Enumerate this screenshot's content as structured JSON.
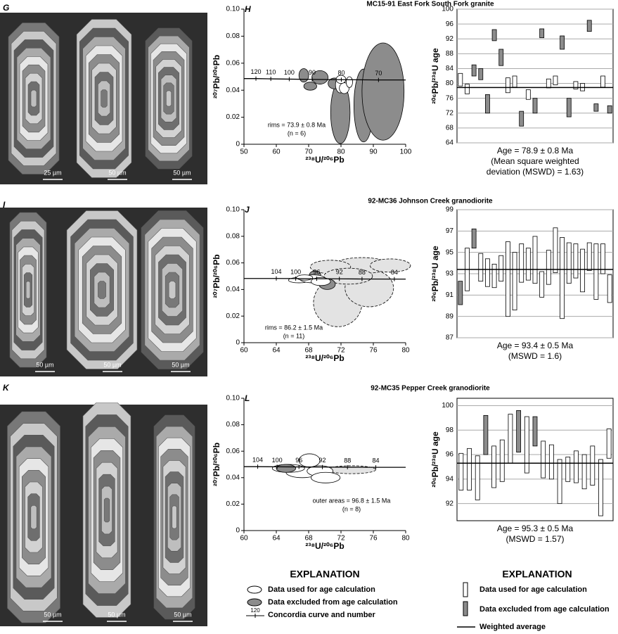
{
  "figure": {
    "rows": [
      {
        "panel_letter": "G",
        "scale_bars": [
          "25 µm",
          "50 µm",
          "50 µm"
        ]
      },
      {
        "panel_letter": "I",
        "scale_bars": [
          "50 µm",
          "50 µm",
          "50 µm"
        ]
      },
      {
        "panel_letter": "K",
        "scale_bars": [
          "50 µm",
          "50 µm",
          "50 µm"
        ]
      }
    ]
  },
  "chart_data": [
    {
      "type": "concordia",
      "panel_letter": "H",
      "title": "MC15-91 East Fork South Fork granite",
      "xlabel": "²³⁸U/²⁰⁶Pb",
      "ylabel": "²⁰⁷Pb/²⁰⁶Pb",
      "xlim": [
        50,
        100
      ],
      "xticks": [
        50,
        60,
        70,
        80,
        90,
        100
      ],
      "ylim": [
        0,
        0.1
      ],
      "yticks": [
        0,
        0.02,
        0.04,
        0.06,
        0.08,
        {
          "value": 0.1,
          "label": "0.10"
        }
      ],
      "concordia": {
        "labels": [
          120,
          110,
          100,
          90,
          80,
          70
        ],
        "x": [
          53.7,
          58.3,
          64.0,
          71.1,
          80.1,
          91.6
        ],
        "y": [
          0.0486,
          0.0484,
          0.0482,
          0.048,
          0.0478,
          0.0476
        ]
      },
      "series": [
        {
          "color": "#8c8c8c",
          "dashed": false,
          "x": [
            79.8,
            87,
            93,
            68.5,
            73.5,
            70.5,
            78
          ],
          "values": [
            0.0235,
            0.0287,
            0.039,
            0.051,
            0.0495,
            0.043,
            0.045
          ],
          "x_errors": [
            3,
            3,
            6.5,
            1.5,
            2.5,
            2,
            2
          ],
          "errors": [
            0.023,
            0.027,
            0.036,
            0.005,
            0.005,
            0.003,
            0.004
          ]
        },
        {
          "color": "#ffffff",
          "dashed": false,
          "x": [
            79.8,
            81,
            80,
            82.6
          ],
          "values": [
            0.044,
            0.0415,
            0.048,
            0.046
          ],
          "x_errors": [
            1.5,
            1.5,
            1.5,
            1
          ],
          "errors": [
            0.006,
            0.004,
            0.003,
            0.004
          ]
        }
      ],
      "annotation": [
        "rims = 73.9 ± 0.8 Ma",
        "(n = 6)"
      ]
    },
    {
      "type": "weighted_mean",
      "ylabel": "²⁰⁶Pb/²³⁸U age",
      "ylim": [
        64,
        100
      ],
      "yticks": [
        64,
        68,
        72,
        76,
        80,
        84,
        88,
        92,
        96,
        100
      ],
      "grid": true,
      "used_color": "#ffffff",
      "excluded_color": "#8c8c8c",
      "values": [
        81,
        78.5,
        83.5,
        82.5,
        74.5,
        93,
        87,
        79.5,
        80.5,
        70.5,
        77,
        74,
        93.5,
        80,
        80.8,
        91,
        73.5,
        79.5,
        79,
        95.5,
        73.5,
        80.5,
        73
      ],
      "errors": [
        1.7,
        1.3,
        1.5,
        1.5,
        2.5,
        1.5,
        2.2,
        2,
        1.5,
        2,
        1.3,
        2,
        1.2,
        1.2,
        1.2,
        1.8,
        2.5,
        1,
        1,
        1.5,
        1,
        1.5,
        1
      ],
      "excluded": [
        false,
        false,
        true,
        true,
        true,
        true,
        true,
        false,
        false,
        true,
        false,
        true,
        true,
        false,
        false,
        true,
        true,
        false,
        false,
        true,
        true,
        false,
        true
      ],
      "weighted_average": 78.9,
      "caption": [
        "Age = 78.9 ± 0.8 Ma",
        "(Mean square weighted",
        "deviation (MSWD) = 1.63)"
      ]
    },
    {
      "type": "concordia",
      "panel_letter": "J",
      "title": "92-MC36 Johnson Creek granodiorite",
      "xlabel": "²³⁸U/²⁰⁶Pb",
      "ylabel": "²⁰⁷Pb/²⁰⁶Pb",
      "xlim": [
        60,
        80
      ],
      "xticks": [
        60,
        64,
        68,
        72,
        76,
        80
      ],
      "ylim": [
        0,
        0.1
      ],
      "yticks": [
        0,
        0.02,
        0.04,
        0.06,
        0.08,
        {
          "value": 0.1,
          "label": "0.10"
        }
      ],
      "concordia": {
        "labels": [
          104,
          100,
          96,
          92,
          88,
          84
        ],
        "x": [
          64.0,
          66.4,
          69.0,
          71.8,
          74.6,
          78.6
        ],
        "y": [
          0.0483,
          0.0482,
          0.0481,
          0.048,
          0.0479,
          0.0478
        ]
      },
      "series": [
        {
          "color": "#e3e3e3",
          "dashed": true,
          "x": [
            71.6,
            75.5,
            74.6,
            78.1,
            70.7,
            72.9
          ],
          "values": [
            0.03,
            0.041,
            0.058,
            0.058,
            0.057,
            0.05
          ],
          "x_errors": [
            3,
            3,
            3.5,
            2.5,
            2.5,
            3
          ],
          "errors": [
            0.018,
            0.014,
            0.006,
            0.005,
            0.005,
            0.006
          ]
        },
        {
          "color": "#8c8c8c",
          "dashed": false,
          "x": [
            68.8,
            70.3
          ],
          "values": [
            0.051,
            0.044
          ],
          "x_errors": [
            0.7,
            1
          ],
          "errors": [
            0.003,
            0.004
          ]
        },
        {
          "color": "#ffffff",
          "dashed": false,
          "x": [
            66.8,
            68.5,
            69.5,
            67.5
          ],
          "values": [
            0.047,
            0.048,
            0.046,
            0.049
          ],
          "x_errors": [
            1.3,
            1.6,
            1.2,
            1
          ],
          "errors": [
            0.002,
            0.003,
            0.003,
            0.002
          ]
        }
      ],
      "annotation": [
        "rims = 86.2 ± 1.5 Ma",
        "(n = 11)"
      ]
    },
    {
      "type": "weighted_mean",
      "ylabel": "²⁰⁶Pb/²³⁸U age",
      "ylim": [
        87,
        99
      ],
      "yticks": [
        87,
        89,
        91,
        93,
        95,
        97,
        99
      ],
      "grid": true,
      "used_color": "#ffffff",
      "excluded_color": "#8c8c8c",
      "values": [
        91.2,
        93.4,
        96.3,
        93.6,
        93.1,
        92.8,
        93.5,
        92.5,
        92.3,
        94,
        93.9,
        94.3,
        92,
        93.6,
        95.2,
        92.6,
        94,
        94.2,
        93.3,
        94.6,
        93.2,
        94.4,
        91.6
      ],
      "errors": [
        1.1,
        2,
        0.9,
        1.3,
        1.3,
        1.1,
        1.2,
        3.5,
        2.7,
        1.8,
        1.5,
        2.2,
        1.2,
        1.6,
        2.1,
        3.8,
        1.9,
        1.6,
        2,
        1.3,
        2.6,
        1.4,
        1.3
      ],
      "excluded": [
        true,
        false,
        true,
        false,
        false,
        false,
        false,
        false,
        false,
        false,
        false,
        false,
        false,
        false,
        false,
        false,
        false,
        false,
        false,
        false,
        false,
        false,
        false
      ],
      "weighted_average": 93.4,
      "caption": [
        "Age = 93.4 ± 0.5 Ma",
        "(MSWD = 1.6)"
      ]
    },
    {
      "type": "concordia",
      "panel_letter": "L",
      "title": "92-MC35 Pepper Creek granodiorite",
      "xlabel": "²³⁸U/²⁰⁶Pb",
      "ylabel": "²⁰⁷Pb/²⁰⁶Pb",
      "xlim": [
        60,
        80
      ],
      "xticks": [
        60,
        64,
        68,
        72,
        76,
        80
      ],
      "ylim": [
        0,
        0.1
      ],
      "yticks": [
        0,
        0.02,
        0.04,
        0.06,
        0.08,
        {
          "value": 0.1,
          "label": "0.10"
        }
      ],
      "concordia": {
        "labels": [
          104,
          100,
          96,
          92,
          88,
          84
        ],
        "x": [
          61.7,
          64.1,
          66.8,
          69.7,
          72.8,
          76.3
        ],
        "y": [
          0.0483,
          0.0482,
          0.0481,
          0.048,
          0.0479,
          0.0478
        ]
      },
      "series": [
        {
          "color": "#e3e3e3",
          "dashed": true,
          "x": [
            73.3
          ],
          "values": [
            0.046
          ],
          "x_errors": [
            3
          ],
          "errors": [
            0.003
          ]
        },
        {
          "color": "#ffffff",
          "dashed": false,
          "x": [
            68.1,
            67.2,
            69.4,
            70.1,
            65.5
          ],
          "values": [
            0.053,
            0.044,
            0.045,
            0.04,
            0.047
          ],
          "x_errors": [
            1.3,
            2,
            1.6,
            1.8,
            2
          ],
          "errors": [
            0.005,
            0.004,
            0.004,
            0.004,
            0.003
          ]
        },
        {
          "color": "#8c8c8c",
          "dashed": false,
          "x": [
            65.2
          ],
          "values": [
            0.047
          ],
          "x_errors": [
            1.2
          ],
          "errors": [
            0.003
          ]
        }
      ],
      "annotation": [
        "outer areas = 96.8 ± 1.5 Ma",
        "(n = 8)"
      ]
    },
    {
      "type": "weighted_mean",
      "ylabel": "²⁰⁶Pb/²³⁸U age",
      "ylim": [
        90.6,
        100.6
      ],
      "yticks": [
        92,
        94,
        96,
        98,
        100
      ],
      "grid": true,
      "used_color": "#ffffff",
      "excluded_color": "#8c8c8c",
      "values": [
        94.6,
        94.8,
        94.1,
        97.6,
        95,
        95.5,
        97.3,
        97.9,
        96.8,
        97.9,
        95.6,
        95.4,
        93.8,
        94.8,
        95,
        94.6,
        95.1,
        93.3,
        96.9
      ],
      "errors": [
        1.5,
        1.7,
        1.8,
        1.6,
        1.7,
        1.7,
        2,
        1.7,
        2.3,
        1.2,
        1.5,
        1.4,
        1.8,
        1,
        1.3,
        1.4,
        1.6,
        2.3,
        1.2
      ],
      "excluded": [
        false,
        false,
        false,
        true,
        false,
        false,
        false,
        true,
        false,
        true,
        false,
        false,
        false,
        false,
        false,
        false,
        false,
        false,
        false
      ],
      "weighted_average": 95.3,
      "caption": [
        "Age = 95.3 ± 0.5 Ma",
        "(MSWD = 1.57)"
      ]
    }
  ],
  "explanation_concordia": {
    "title": "EXPLANATION",
    "items": [
      "Data used for age calculation",
      "Data excluded from age calculation",
      "Concordia curve and number"
    ],
    "tick_label": 120
  },
  "explanation_weighted": {
    "title": "EXPLANATION",
    "items": [
      "Data used for age calculation",
      "Data excluded from age calculation",
      "Weighted average"
    ]
  }
}
